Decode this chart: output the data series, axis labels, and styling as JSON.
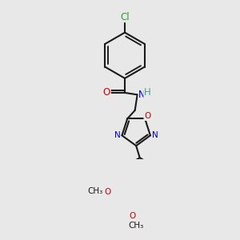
{
  "bg_color": "#e8e8e8",
  "bond_color": "#1a1a1a",
  "bond_width": 1.5,
  "dbo": 0.08,
  "atom_colors": {
    "C": "#1a1a1a",
    "N": "#0000cc",
    "O": "#cc0000",
    "Cl": "#2ca02c",
    "H": "#4a9a9a"
  },
  "font_size": 8.5,
  "small_font_size": 7.5
}
